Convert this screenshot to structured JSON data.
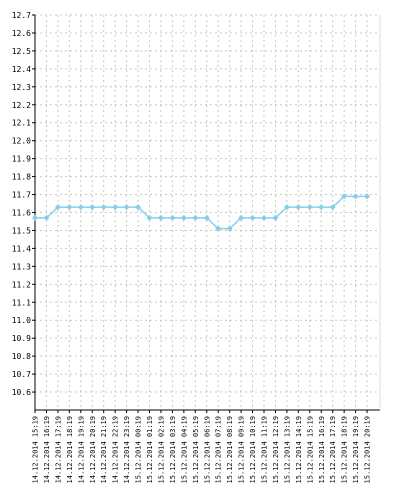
{
  "chart_data": {
    "type": "line",
    "title": "",
    "xlabel": "",
    "ylabel": "",
    "ylim": [
      10.5,
      12.7
    ],
    "yticks": [
      10.6,
      10.7,
      10.8,
      10.9,
      11.0,
      11.1,
      11.2,
      11.3,
      11.4,
      11.5,
      11.6,
      11.7,
      11.8,
      11.9,
      12.0,
      12.1,
      12.2,
      12.3,
      12.4,
      12.5,
      12.6,
      12.7
    ],
    "grid": true,
    "legend": "none",
    "colors": {
      "line": "#87CEEB",
      "grid": "#c8c8c8",
      "axis": "#000000"
    },
    "categories": [
      "14.12.2014 15:19",
      "14.12.2014 16:19",
      "14.12.2014 17:19",
      "14.12.2014 18:19",
      "14.12.2014 19:19",
      "14.12.2014 20:19",
      "14.12.2014 21:19",
      "14.12.2014 22:19",
      "14.12.2014 23:19",
      "15.12.2014 00:19",
      "15.12.2014 01:19",
      "15.12.2014 02:19",
      "15.12.2014 03:19",
      "15.12.2014 04:19",
      "15.12.2014 05:19",
      "15.12.2014 06:19",
      "15.12.2014 07:19",
      "15.12.2014 08:19",
      "15.12.2014 09:19",
      "15.12.2014 10:19",
      "15.12.2014 11:19",
      "15.12.2014 12:19",
      "15.12.2014 13:19",
      "15.12.2014 14:19",
      "15.12.2014 15:19",
      "15.12.2014 16:19",
      "15.12.2014 17:19",
      "15.12.2014 18:19",
      "15.12.2014 19:19",
      "15.12.2014 20:19"
    ],
    "series": [
      {
        "values": [
          11.57,
          11.57,
          11.63,
          11.63,
          11.63,
          11.63,
          11.63,
          11.63,
          11.63,
          11.63,
          11.57,
          11.57,
          11.57,
          11.57,
          11.57,
          11.57,
          11.51,
          11.51,
          11.57,
          11.57,
          11.57,
          11.57,
          11.63,
          11.63,
          11.63,
          11.63,
          11.63,
          11.69,
          11.69,
          11.69
        ]
      }
    ]
  }
}
